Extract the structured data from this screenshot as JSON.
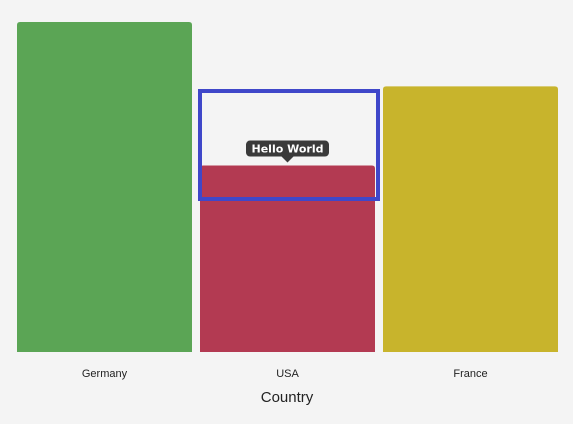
{
  "chart_data": {
    "type": "bar",
    "categories": [
      "Germany",
      "USA",
      "France"
    ],
    "values": [
      100,
      56.5,
      80.5
    ],
    "colors": [
      "#5ba555",
      "#b33a52",
      "#c8b42c"
    ],
    "xlabel": "Country",
    "ylabel": "",
    "ylim": [
      0,
      100
    ],
    "grid": false,
    "legend": "none"
  },
  "tooltip": {
    "text": "Hello World",
    "category": "USA"
  },
  "highlight": {
    "category": "USA",
    "color": "#3f47c9"
  },
  "colors": {
    "background": "#f4f4f4",
    "tooltip_bg": "#3a3a3a",
    "label_text": "#222222"
  }
}
